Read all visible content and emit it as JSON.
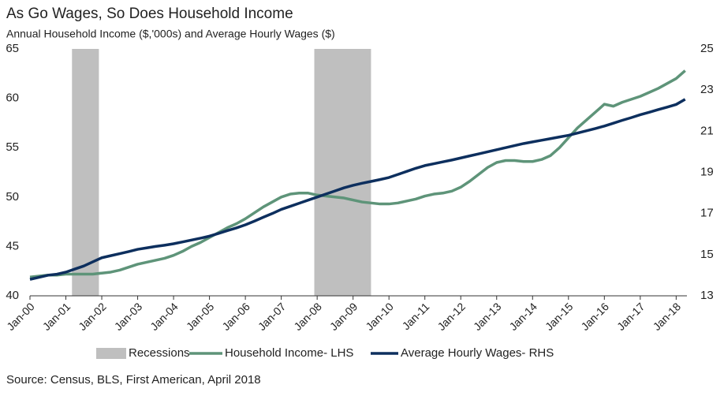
{
  "chart_data": {
    "type": "line",
    "title": "As Go Wages, So Does Household Income",
    "subtitle": "Annual Household Income ($,'000s) and Average Hourly Wages ($)",
    "source": "Source: Census, BLS, First American, April 2018",
    "x": [
      2000,
      2000.25,
      2000.5,
      2000.75,
      2001,
      2001.25,
      2001.5,
      2001.75,
      2002,
      2002.25,
      2002.5,
      2002.75,
      2003,
      2003.25,
      2003.5,
      2003.75,
      2004,
      2004.25,
      2004.5,
      2004.75,
      2005,
      2005.25,
      2005.5,
      2005.75,
      2006,
      2006.25,
      2006.5,
      2006.75,
      2007,
      2007.25,
      2007.5,
      2007.75,
      2008,
      2008.25,
      2008.5,
      2008.75,
      2009,
      2009.25,
      2009.5,
      2009.75,
      2010,
      2010.25,
      2010.5,
      2010.75,
      2011,
      2011.25,
      2011.5,
      2011.75,
      2012,
      2012.25,
      2012.5,
      2012.75,
      2013,
      2013.25,
      2013.5,
      2013.75,
      2014,
      2014.25,
      2014.5,
      2014.75,
      2015,
      2015.25,
      2015.5,
      2015.75,
      2016,
      2016.25,
      2016.5,
      2016.75,
      2017,
      2017.25,
      2017.5,
      2017.75,
      2018,
      2018.25
    ],
    "xlim": [
      2000,
      2018.3
    ],
    "xticks": [
      {
        "value": 2000,
        "label": "Jan-00"
      },
      {
        "value": 2001,
        "label": "Jan-01"
      },
      {
        "value": 2002,
        "label": "Jan-02"
      },
      {
        "value": 2003,
        "label": "Jan-03"
      },
      {
        "value": 2004,
        "label": "Jan-04"
      },
      {
        "value": 2005,
        "label": "Jan-05"
      },
      {
        "value": 2006,
        "label": "Jan-06"
      },
      {
        "value": 2007,
        "label": "Jan-07"
      },
      {
        "value": 2008,
        "label": "Jan-08"
      },
      {
        "value": 2009,
        "label": "Jan-09"
      },
      {
        "value": 2010,
        "label": "Jan-10"
      },
      {
        "value": 2011,
        "label": "Jan-11"
      },
      {
        "value": 2012,
        "label": "Jan-12"
      },
      {
        "value": 2013,
        "label": "Jan-13"
      },
      {
        "value": 2014,
        "label": "Jan-14"
      },
      {
        "value": 2015,
        "label": "Jan-15"
      },
      {
        "value": 2016,
        "label": "Jan-16"
      },
      {
        "value": 2017,
        "label": "Jan-17"
      },
      {
        "value": 2018,
        "label": "Jan-18"
      }
    ],
    "ylim": [
      40,
      65
    ],
    "yticks": [
      40,
      45,
      50,
      55,
      60,
      65
    ],
    "y2lim": [
      13,
      25
    ],
    "y2ticks": [
      13,
      15,
      17,
      19,
      21,
      23,
      25
    ],
    "recessions": {
      "name": "Recessions",
      "color": "#bfbfbf",
      "ranges": [
        [
          2001.17,
          2001.92
        ],
        [
          2007.92,
          2009.5
        ]
      ]
    },
    "series": [
      {
        "name": "Household Income- LHS",
        "color": "#5e9479",
        "values": [
          41.9,
          42.0,
          42.1,
          42.1,
          42.2,
          42.2,
          42.2,
          42.2,
          42.3,
          42.4,
          42.6,
          42.9,
          43.2,
          43.4,
          43.6,
          43.8,
          44.1,
          44.5,
          45.0,
          45.4,
          45.9,
          46.4,
          46.9,
          47.3,
          47.8,
          48.4,
          49.0,
          49.5,
          50.0,
          50.3,
          50.4,
          50.4,
          50.2,
          50.1,
          50.0,
          49.9,
          49.7,
          49.5,
          49.4,
          49.3,
          49.3,
          49.4,
          49.6,
          49.8,
          50.1,
          50.3,
          50.4,
          50.6,
          51.0,
          51.6,
          52.3,
          53.0,
          53.5,
          53.7,
          53.7,
          53.6,
          53.6,
          53.8,
          54.2,
          55.0,
          56.0,
          57.0,
          57.8,
          58.6,
          59.4,
          59.2,
          59.6,
          59.9,
          60.2,
          60.6,
          61.0,
          61.5,
          62.0,
          62.8
        ]
      },
      {
        "name": "Average Hourly Wages- RHS",
        "color": "#0d2f5e",
        "axis": "y2",
        "values": [
          13.8,
          13.9,
          14.0,
          14.05,
          14.15,
          14.3,
          14.45,
          14.65,
          14.85,
          14.95,
          15.05,
          15.15,
          15.26,
          15.33,
          15.4,
          15.46,
          15.53,
          15.62,
          15.71,
          15.8,
          15.9,
          16.03,
          16.17,
          16.3,
          16.45,
          16.63,
          16.82,
          17.0,
          17.2,
          17.35,
          17.5,
          17.65,
          17.8,
          17.95,
          18.1,
          18.25,
          18.37,
          18.47,
          18.56,
          18.65,
          18.75,
          18.9,
          19.05,
          19.2,
          19.33,
          19.42,
          19.51,
          19.6,
          19.7,
          19.8,
          19.9,
          20.0,
          20.1,
          20.2,
          20.3,
          20.4,
          20.48,
          20.56,
          20.64,
          20.72,
          20.8,
          20.91,
          21.02,
          21.13,
          21.25,
          21.39,
          21.53,
          21.66,
          21.8,
          21.92,
          22.05,
          22.17,
          22.3,
          22.55
        ]
      }
    ]
  }
}
